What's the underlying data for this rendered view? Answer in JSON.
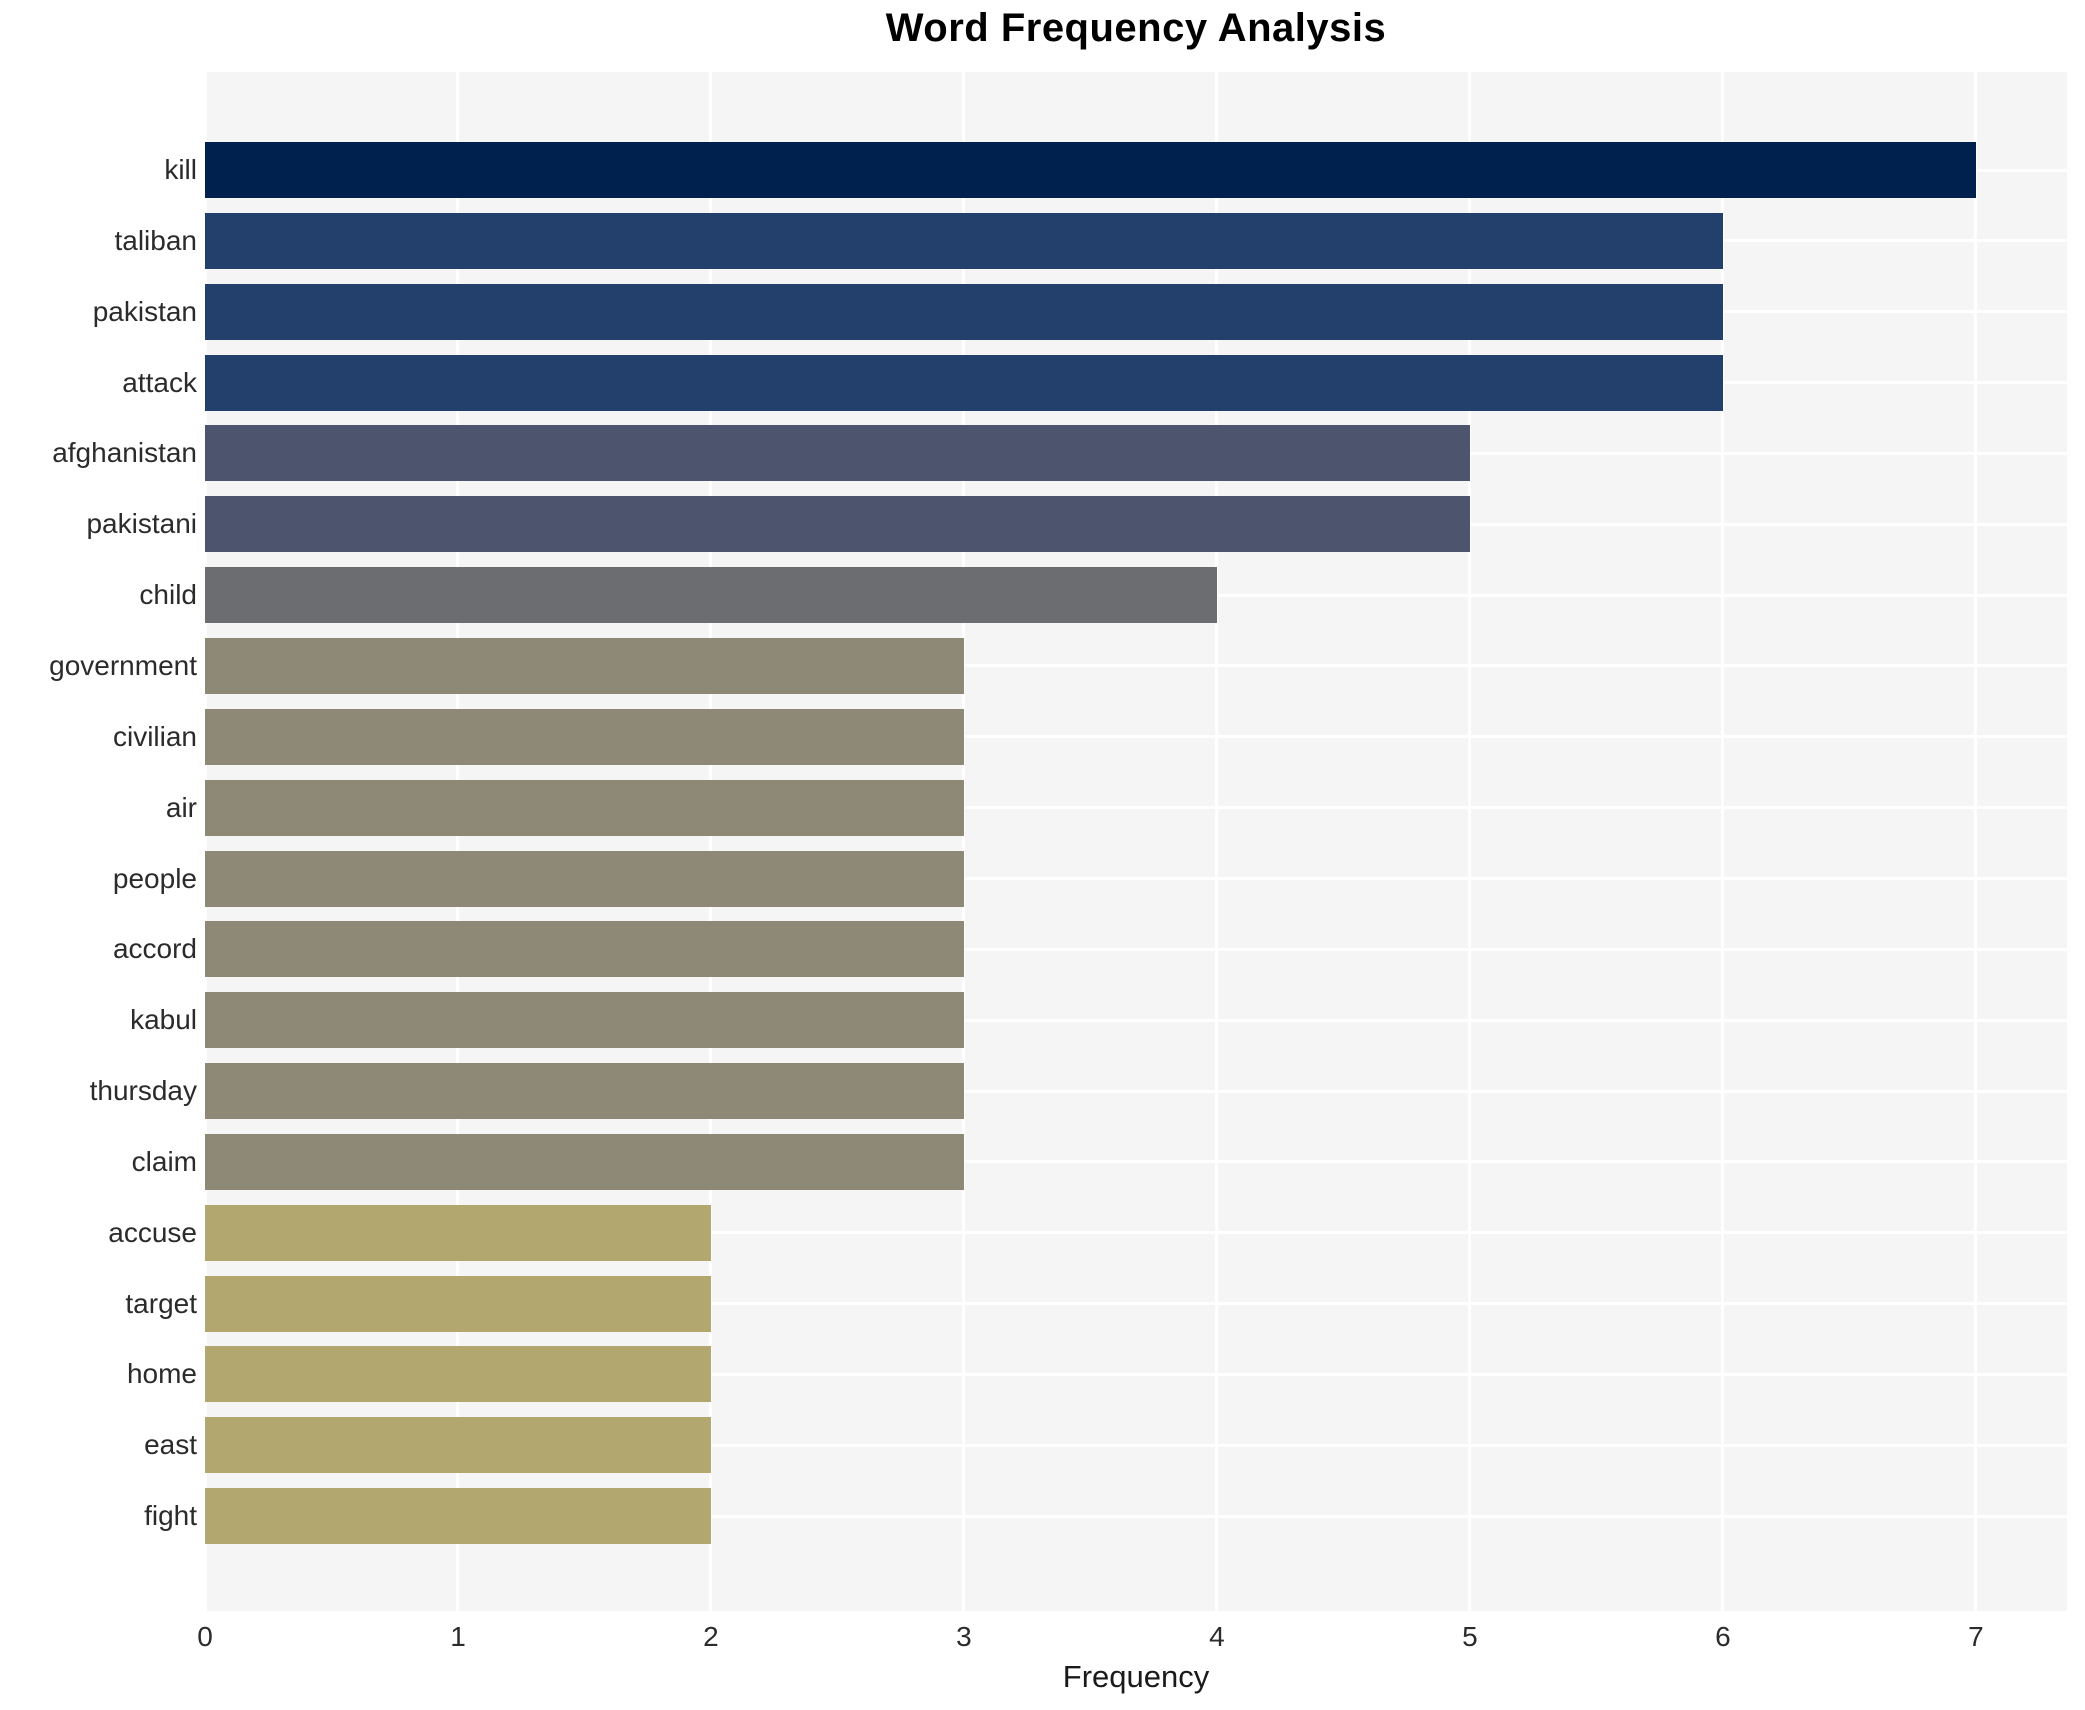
{
  "title": "Word Frequency Analysis",
  "chart_data": {
    "type": "bar",
    "orientation": "horizontal",
    "title": "Word Frequency Analysis",
    "xlabel": "Frequency",
    "ylabel": "",
    "categories": [
      "kill",
      "taliban",
      "pakistan",
      "attack",
      "afghanistan",
      "pakistani",
      "child",
      "government",
      "civilian",
      "air",
      "people",
      "accord",
      "kabul",
      "thursday",
      "claim",
      "accuse",
      "target",
      "home",
      "east",
      "fight"
    ],
    "values": [
      7,
      6,
      6,
      6,
      5,
      5,
      4,
      3,
      3,
      3,
      3,
      3,
      3,
      3,
      3,
      2,
      2,
      2,
      2,
      2
    ],
    "xticks": [
      "0",
      "1",
      "2",
      "3",
      "4",
      "5",
      "6",
      "7"
    ],
    "xlim": [
      0,
      7.36
    ],
    "grid": true,
    "legend": false,
    "plot_bg_color": "#f5f5f6",
    "grid_color": "#ffffff",
    "text_color": "#2b2b2b",
    "title_color": "#000000",
    "value_colors": {
      "7": "#00204d",
      "6": "#233f6c",
      "5": "#4d546e",
      "4": "#6b6d71",
      "3": "#8e8977",
      "2": "#b1a76f"
    }
  }
}
